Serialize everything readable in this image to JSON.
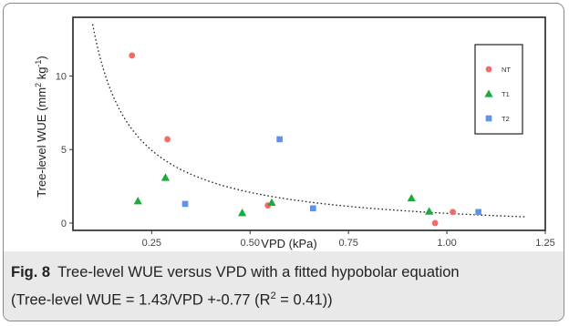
{
  "caption": {
    "label": "Fig. 8",
    "line1": "Tree-level WUE versus VPD with a fitted hypobolar equation",
    "line2_prefix": "(Tree-level WUE = 1.43/VPD +-0.77 (R",
    "line2_sup": "2",
    "line2_suffix": " = 0.41))"
  },
  "chart_data": {
    "type": "scatter",
    "xlabel": "VPD (kPa)",
    "ylabel_main": "Tree-level WUE (mm",
    "ylabel_sup1": "2",
    "ylabel_mid": " kg",
    "ylabel_sup2": "-1",
    "ylabel_end": ")",
    "xlim": [
      0.05,
      1.25
    ],
    "ylim": [
      -0.5,
      14
    ],
    "xticks": [
      0.25,
      0.5,
      0.75,
      1.0,
      1.25
    ],
    "xtick_labels": [
      "0.25",
      "0.50",
      "0.75",
      "1.00",
      "1.25"
    ],
    "yticks": [
      0,
      5,
      10
    ],
    "ytick_labels": [
      "0",
      "5",
      "10"
    ],
    "grid": false,
    "legend_position": "top-right",
    "series": [
      {
        "name": "NT",
        "marker": "circle",
        "color": "#f26b6b",
        "x": [
          0.2,
          0.29,
          0.545,
          0.97,
          1.015
        ],
        "y": [
          11.4,
          5.7,
          1.2,
          0.0,
          0.75
        ]
      },
      {
        "name": "T1",
        "marker": "triangle",
        "color": "#1aab3c",
        "x": [
          0.215,
          0.285,
          0.48,
          0.555,
          0.91,
          0.955
        ],
        "y": [
          1.5,
          3.1,
          0.7,
          1.4,
          1.7,
          0.8
        ]
      },
      {
        "name": "T2",
        "marker": "square",
        "color": "#5e93e8",
        "x": [
          0.335,
          0.575,
          0.66,
          1.08
        ],
        "y": [
          1.3,
          5.7,
          1.0,
          0.75
        ]
      }
    ],
    "fit": {
      "style": "dotted",
      "color": "#222222",
      "a": 1.43,
      "b": -0.77,
      "x_range": [
        0.1,
        1.2
      ]
    }
  }
}
